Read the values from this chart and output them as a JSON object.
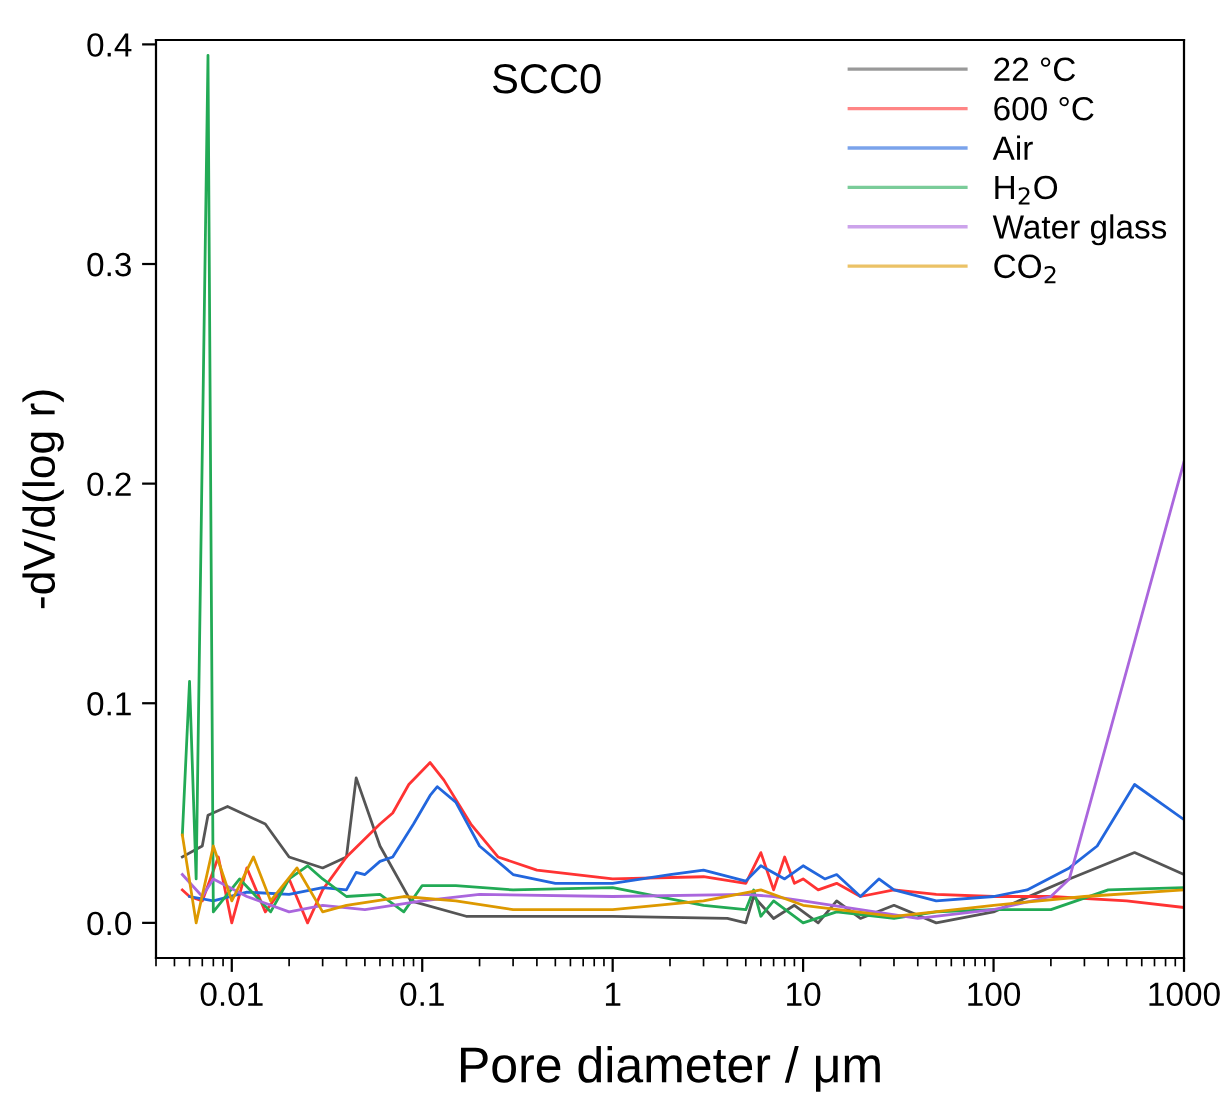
{
  "chart_data": {
    "type": "line",
    "title": "SCC0",
    "xlabel": "Pore diameter / μm",
    "ylabel": "-dV/d(log r)",
    "log": "x",
    "xlim": [
      0.004,
      1000
    ],
    "xticks": [
      0.01,
      0.1,
      1,
      10,
      100,
      {
        "value": 1000,
        "label": "1000"
      }
    ],
    "ylim": [
      -0.016,
      0.402
    ],
    "yticks": [
      {
        "value": 0,
        "label": "0.0"
      },
      0.1,
      0.2,
      0.3,
      0.4
    ],
    "grid": false,
    "legend": "top right",
    "marker": "none",
    "line_style": "solid",
    "series": [
      {
        "name": "22 °C",
        "color": "#555555",
        "x": [
          0.0055,
          0.007,
          0.0075,
          0.0095,
          0.015,
          0.02,
          0.03,
          0.04,
          0.045,
          0.06,
          0.087,
          0.17,
          1,
          4,
          5,
          5.5,
          7,
          9,
          12,
          15,
          20,
          30,
          50,
          100,
          250,
          550,
          1000
        ],
        "values": [
          0.03,
          0.035,
          0.049,
          0.053,
          0.045,
          0.03,
          0.025,
          0.03,
          0.066,
          0.035,
          0.01,
          0.003,
          0.003,
          0.002,
          0.0,
          0.012,
          0.002,
          0.008,
          0.0,
          0.01,
          0.002,
          0.008,
          0.0,
          0.005,
          0.02,
          0.032,
          0.022
        ]
      },
      {
        "name": "600 °C",
        "color": "#ff3333",
        "x": [
          0.0055,
          0.006,
          0.007,
          0.0085,
          0.01,
          0.012,
          0.015,
          0.02,
          0.025,
          0.03,
          0.04,
          0.06,
          0.07,
          0.085,
          0.11,
          0.13,
          0.18,
          0.25,
          0.4,
          1,
          3,
          5,
          6,
          7,
          8,
          9,
          10,
          12,
          15,
          20,
          30,
          50,
          100,
          200,
          500,
          1000
        ],
        "values": [
          0.015,
          0.012,
          0.01,
          0.03,
          0.0,
          0.025,
          0.005,
          0.02,
          0.0,
          0.015,
          0.03,
          0.045,
          0.05,
          0.063,
          0.073,
          0.065,
          0.045,
          0.03,
          0.024,
          0.02,
          0.021,
          0.018,
          0.032,
          0.015,
          0.03,
          0.018,
          0.02,
          0.015,
          0.018,
          0.012,
          0.015,
          0.013,
          0.012,
          0.012,
          0.01,
          0.007
        ]
      },
      {
        "name": "Air",
        "color": "#2266dd",
        "x": [
          0.006,
          0.008,
          0.012,
          0.02,
          0.03,
          0.04,
          0.045,
          0.05,
          0.06,
          0.07,
          0.09,
          0.11,
          0.12,
          0.15,
          0.2,
          0.3,
          0.5,
          1,
          2,
          3,
          5,
          6,
          8,
          10,
          13,
          15,
          20,
          25,
          30,
          50,
          100,
          150,
          250,
          350,
          550,
          1000
        ],
        "values": [
          0.012,
          0.01,
          0.014,
          0.013,
          0.016,
          0.015,
          0.023,
          0.022,
          0.028,
          0.03,
          0.045,
          0.058,
          0.062,
          0.055,
          0.035,
          0.022,
          0.018,
          0.018,
          0.022,
          0.024,
          0.019,
          0.026,
          0.02,
          0.026,
          0.02,
          0.022,
          0.012,
          0.02,
          0.015,
          0.01,
          0.012,
          0.015,
          0.025,
          0.035,
          0.063,
          0.047
        ]
      },
      {
        "name": "H$_{2}$O",
        "color": "#22aa55",
        "x": [
          0.0055,
          0.006,
          0.0065,
          0.0075,
          0.008,
          0.011,
          0.016,
          0.02,
          0.025,
          0.03,
          0.04,
          0.06,
          0.08,
          0.1,
          0.15,
          0.3,
          1,
          3,
          5,
          5.5,
          6,
          7,
          10,
          15,
          30,
          50,
          100,
          200,
          400,
          1000
        ],
        "values": [
          0.04,
          0.11,
          0.02,
          0.395,
          0.005,
          0.02,
          0.005,
          0.02,
          0.026,
          0.02,
          0.012,
          0.013,
          0.005,
          0.017,
          0.017,
          0.015,
          0.016,
          0.008,
          0.006,
          0.015,
          0.003,
          0.01,
          0.0,
          0.005,
          0.002,
          0.005,
          0.006,
          0.006,
          0.015,
          0.016
        ]
      },
      {
        "name": "Water glass",
        "color": "#aa66dd",
        "x": [
          0.0055,
          0.007,
          0.008,
          0.012,
          0.02,
          0.03,
          0.05,
          0.1,
          0.2,
          1,
          5,
          7,
          10,
          20,
          40,
          100,
          200,
          250,
          1000
        ],
        "values": [
          0.022,
          0.012,
          0.02,
          0.012,
          0.005,
          0.008,
          0.006,
          0.01,
          0.013,
          0.012,
          0.013,
          0.012,
          0.01,
          0.006,
          0.002,
          0.006,
          0.012,
          0.02,
          0.21
        ]
      },
      {
        "name": "CO$_{2}$",
        "color": "#dd9900",
        "x": [
          0.0055,
          0.0065,
          0.008,
          0.01,
          0.013,
          0.016,
          0.022,
          0.03,
          0.04,
          0.08,
          0.15,
          0.3,
          1,
          3,
          6,
          10,
          30,
          100,
          300,
          1000
        ],
        "values": [
          0.04,
          0.0,
          0.035,
          0.01,
          0.03,
          0.01,
          0.025,
          0.005,
          0.008,
          0.012,
          0.01,
          0.006,
          0.006,
          0.01,
          0.015,
          0.008,
          0.003,
          0.008,
          0.012,
          0.015
        ]
      }
    ]
  }
}
